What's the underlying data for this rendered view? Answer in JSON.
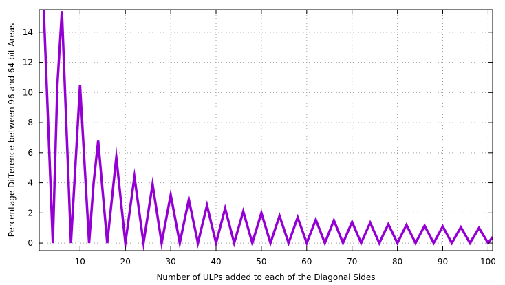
{
  "chart_data": {
    "type": "line",
    "title": "",
    "xlabel": "Number of ULPs added to each of the Diagonal Sides",
    "ylabel": "Percentage Difference between 96 and 64 bit Areas",
    "xlim": [
      1,
      101
    ],
    "ylim": [
      -0.5,
      15.5
    ],
    "grid": true,
    "legend": "none",
    "x_ticks": [
      10,
      20,
      30,
      40,
      50,
      60,
      70,
      80,
      90,
      100
    ],
    "x_tick_labels": [
      "10",
      "20",
      "30",
      "40",
      "50",
      "60",
      "70",
      "80",
      "90",
      "100"
    ],
    "y_ticks": [
      0,
      2,
      4,
      6,
      8,
      10,
      12,
      14
    ],
    "y_tick_labels": [
      "0",
      "2",
      "4",
      "6",
      "8",
      "10",
      "12",
      "14"
    ],
    "series": [
      {
        "color": "#9400d3",
        "x": [
          2,
          4,
          5,
          6,
          8,
          10,
          12,
          13,
          14,
          16,
          18,
          20,
          22,
          24,
          26,
          28,
          30,
          32,
          34,
          36,
          38,
          40,
          42,
          44,
          46,
          48,
          50,
          52,
          54,
          56,
          58,
          60,
          62,
          64,
          66,
          68,
          70,
          72,
          74,
          76,
          78,
          80,
          82,
          84,
          86,
          88,
          90,
          92,
          94,
          96,
          98,
          100,
          101
        ],
        "y": [
          15.5,
          0,
          10.5,
          15.4,
          0,
          10.5,
          0,
          4,
          6.8,
          0,
          5.7,
          0,
          4.4,
          0,
          3.9,
          0,
          3.2,
          0,
          2.9,
          0,
          2.5,
          0,
          2.3,
          0,
          2.1,
          0,
          2.0,
          0,
          1.8,
          0,
          1.7,
          0,
          1.55,
          0,
          1.5,
          0,
          1.4,
          0,
          1.35,
          0,
          1.25,
          0,
          1.2,
          0,
          1.15,
          0,
          1.1,
          0,
          1.05,
          0,
          1.0,
          0,
          0.4
        ]
      }
    ]
  }
}
